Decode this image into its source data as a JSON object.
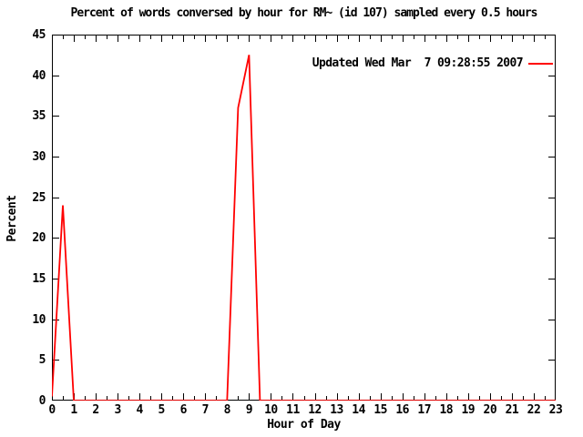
{
  "title": "Percent of words conversed by hour for RM~ (id 107) sampled every 0.5 hours",
  "legend": {
    "label": "Updated Wed Mar  7 09:28:55 2007",
    "line_color": "#ff0000"
  },
  "axes": {
    "x": {
      "label": "Hour of Day",
      "min": 0,
      "max": 23,
      "major_tick_step": 1,
      "minor_tick_step": 0.5,
      "tick_labels": [
        "0",
        "1",
        "2",
        "3",
        "4",
        "5",
        "6",
        "7",
        "8",
        "9",
        "10",
        "11",
        "12",
        "13",
        "14",
        "15",
        "16",
        "17",
        "18",
        "19",
        "20",
        "21",
        "22",
        "23"
      ]
    },
    "y": {
      "label": "Percent",
      "min": 0,
      "max": 45,
      "major_tick_step": 5,
      "tick_labels": [
        "0",
        "5",
        "10",
        "15",
        "20",
        "25",
        "30",
        "35",
        "40",
        "45"
      ]
    }
  },
  "colors": {
    "line": "#ff0000",
    "axis": "#000000",
    "background": "#ffffff"
  },
  "chart_data": {
    "type": "line",
    "title": "Percent of words conversed by hour for RM~ (id 107) sampled every 0.5 hours",
    "xlabel": "Hour of Day",
    "ylabel": "Percent",
    "xlim": [
      0,
      23
    ],
    "ylim": [
      0,
      45
    ],
    "grid": false,
    "legend_position": "top-right-inside",
    "sampling_interval_hours": 0.5,
    "series": [
      {
        "name": "Updated Wed Mar  7 09:28:55 2007",
        "color": "#ff0000",
        "x": [
          0,
          0.5,
          1,
          1.5,
          2,
          2.5,
          3,
          3.5,
          4,
          4.5,
          5,
          5.5,
          6,
          6.5,
          7,
          7.5,
          8,
          8.5,
          9,
          9.5,
          10,
          10.5,
          11,
          11.5,
          12,
          12.5,
          13,
          13.5,
          14,
          14.5,
          15,
          15.5,
          16,
          16.5,
          17,
          17.5,
          18,
          18.5,
          19,
          19.5,
          20,
          20.5,
          21,
          21.5,
          22,
          22.5,
          23
        ],
        "y": [
          0.5,
          24,
          0,
          0,
          0,
          0,
          0,
          0,
          0,
          0,
          0,
          0,
          0,
          0,
          0,
          0,
          0,
          36,
          42.5,
          0,
          0,
          0,
          0,
          0,
          0,
          0,
          0,
          0,
          0,
          0,
          0,
          0,
          0,
          0,
          0,
          0,
          0,
          0,
          0,
          0,
          0,
          0,
          0,
          0,
          0,
          0,
          0
        ]
      }
    ]
  }
}
